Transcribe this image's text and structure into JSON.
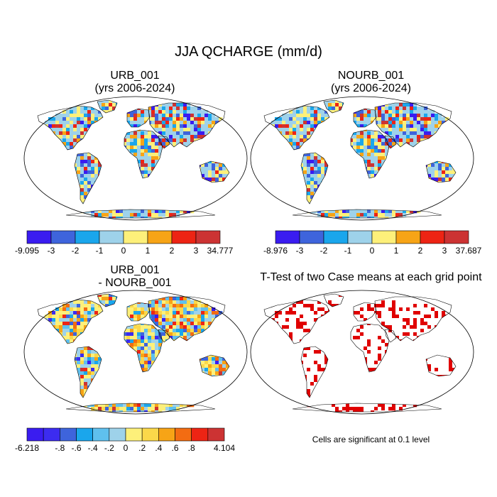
{
  "figure": {
    "title": "JJA QCHARGE (mm/d)",
    "note": "Cells are significant at 0.1 level"
  },
  "panels": {
    "urb": {
      "title_line1": "URB_001",
      "title_line2": "(yrs 2006-2024)"
    },
    "nourb": {
      "title_line1": "NOURB_001",
      "title_line2": "(yrs 2006-2024)"
    },
    "diff": {
      "title_line1": "URB_001",
      "title_line2": "- NOURB_001"
    },
    "ttest": {
      "title_line1": "T-Test of two Case means at each grid point"
    }
  },
  "chart_data": [
    {
      "type": "heatmap",
      "name": "URB_001",
      "title": "URB_001 (yrs 2006-2024)",
      "colorbar": {
        "colors": [
          "#3a1cf0",
          "#3e64dc",
          "#1aa6ec",
          "#9ed2ea",
          "#fdf07a",
          "#f7a416",
          "#ed2414",
          "#cc3333"
        ],
        "labels": [
          "-9.095",
          "-3",
          "-2",
          "-1",
          "0",
          "1",
          "2",
          "3",
          "34.777"
        ],
        "min": -9.095,
        "max": 34.777
      }
    },
    {
      "type": "heatmap",
      "name": "NOURB_001",
      "title": "NOURB_001 (yrs 2006-2024)",
      "colorbar": {
        "colors": [
          "#3a1cf0",
          "#3e64dc",
          "#1aa6ec",
          "#9ed2ea",
          "#fdf07a",
          "#f7a416",
          "#ed2414",
          "#cc3333"
        ],
        "labels": [
          "-8.976",
          "-3",
          "-2",
          "-1",
          "0",
          "1",
          "2",
          "3",
          "37.687"
        ],
        "min": -8.976,
        "max": 37.687
      }
    },
    {
      "type": "heatmap",
      "name": "URB_001 - NOURB_001",
      "title": "URB_001 - NOURB_001",
      "colorbar": {
        "colors": [
          "#3a1cf0",
          "#3c2cf0",
          "#3e64dc",
          "#1aa6ec",
          "#5fc0ee",
          "#9ed2ea",
          "#fdf07a",
          "#fbd84a",
          "#f7a416",
          "#f36c12",
          "#ed2414",
          "#cc3333"
        ],
        "labels": [
          "-6.218",
          "",
          "-.8",
          "-.6",
          "-.4",
          "-.2",
          "0",
          ".2",
          ".4",
          ".6",
          ".8",
          "",
          "4.104"
        ],
        "min": -6.218,
        "max": 4.104
      }
    },
    {
      "type": "heatmap",
      "name": "T-Test",
      "title": "T-Test of two Case means at each grid point",
      "significance_level": 0.1,
      "color": "#e00000"
    }
  ]
}
